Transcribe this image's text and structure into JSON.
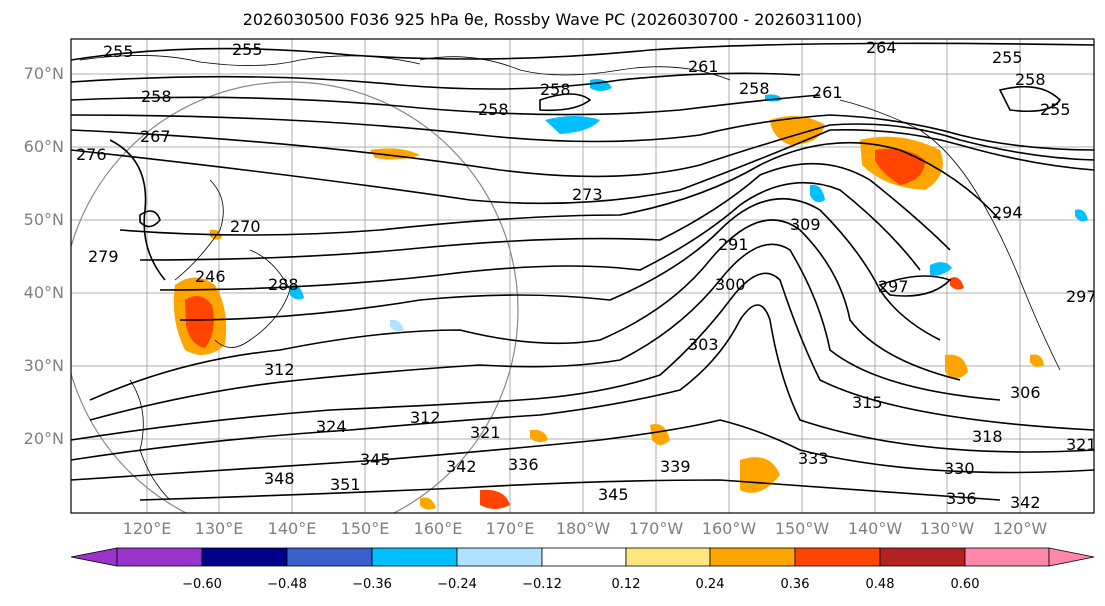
{
  "title": "2026030500 F036 925 hPa θe, Rossby Wave PC (2026030700 - 2026031100)",
  "latitude_labels": [
    "70°N",
    "60°N",
    "50°N",
    "40°N",
    "30°N",
    "20°N"
  ],
  "longitude_labels": [
    "120°E",
    "130°E",
    "140°E",
    "150°E",
    "160°E",
    "170°E",
    "180°W",
    "170°W",
    "160°W",
    "150°W",
    "140°W",
    "130°W",
    "120°W"
  ],
  "contour_labels": [
    "255",
    "255",
    "258",
    "261",
    "264",
    "258",
    "258",
    "258",
    "255",
    "261",
    "255",
    "258",
    "267",
    "276",
    "273",
    "279",
    "270",
    "246",
    "288",
    "291",
    "300",
    "309",
    "294",
    "297",
    "297",
    "303",
    "312",
    "315",
    "306",
    "324",
    "312",
    "321",
    "318",
    "321",
    "345",
    "342",
    "336",
    "339",
    "333",
    "330",
    "348",
    "351",
    "345",
    "336",
    "342"
  ],
  "colorbar": {
    "ticks": [
      "−0.60",
      "−0.48",
      "−0.36",
      "−0.24",
      "−0.12",
      "0.12",
      "0.24",
      "0.36",
      "0.48",
      "0.60"
    ],
    "colors": [
      "#9933cc",
      "#00008b",
      "#3a5fcd",
      "#00bfff",
      "#b0e2ff",
      "#ffffff",
      "#ffe680",
      "#ffa500",
      "#ff4500",
      "#b22222",
      "#ff88aa"
    ]
  }
}
